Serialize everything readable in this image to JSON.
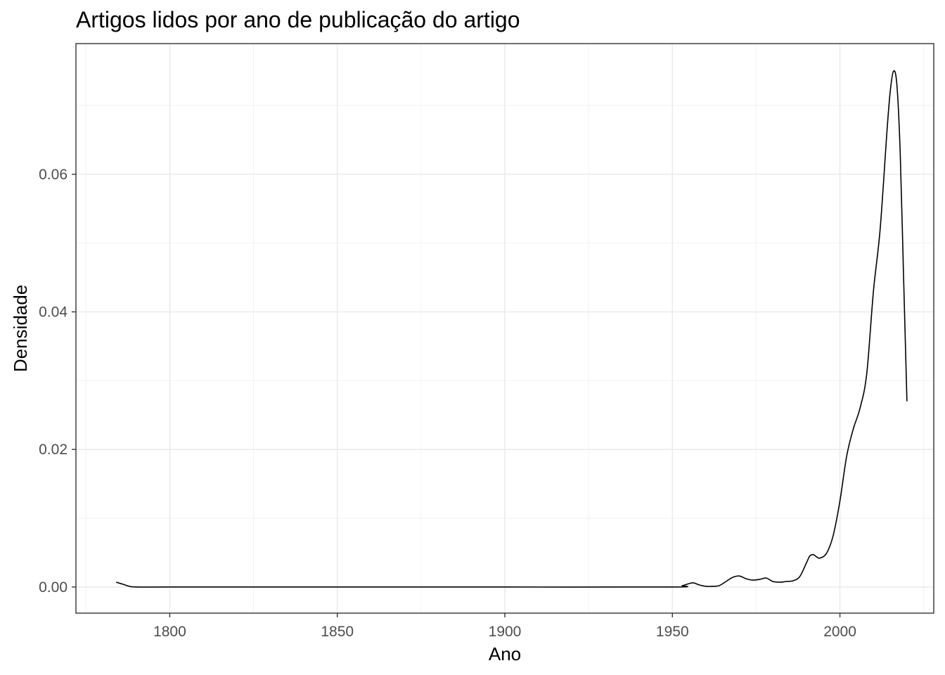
{
  "chart_data": {
    "type": "line",
    "title": "Artigos lidos por ano de publicação do artigo",
    "xlabel": "Ano",
    "ylabel": "Densidade",
    "xlim": [
      1772,
      2028
    ],
    "ylim": [
      -0.0038,
      0.079
    ],
    "x_ticks": [
      1800,
      1850,
      1900,
      1950,
      2000
    ],
    "x_tick_labels": [
      "1800",
      "1850",
      "1900",
      "1950",
      "2000"
    ],
    "x_minor_ticks": [
      1775,
      1825,
      1875,
      1925,
      1975,
      2025
    ],
    "y_ticks": [
      0,
      0.02,
      0.04,
      0.06
    ],
    "y_tick_labels": [
      "0.00",
      "0.02",
      "0.04",
      "0.06"
    ],
    "y_minor_ticks": [
      0.01,
      0.03,
      0.05,
      0.07
    ],
    "grid": true,
    "line_color": "#000000",
    "series": [
      {
        "x": [
          1784,
          1786,
          1788,
          1790,
          1800,
          1850,
          1900,
          1950,
          1953,
          1956,
          1958,
          1960,
          1962,
          1964,
          1966,
          1968,
          1970,
          1972,
          1974,
          1976,
          1978,
          1980,
          1982,
          1984,
          1986,
          1988,
          1990,
          1991,
          1992,
          1993,
          1994,
          1996,
          1998,
          2000,
          2002,
          2004,
          2006,
          2008,
          2010,
          2012,
          2014,
          2015,
          2016,
          2017,
          2018,
          2019,
          2020
        ],
        "y": [
          0.0007,
          0.0004,
          0.0001,
          0.0,
          0.0,
          0.0,
          0.0,
          0.0,
          0.0002,
          0.0006,
          0.0003,
          0.0001,
          0.0001,
          0.0002,
          0.0008,
          0.0014,
          0.0016,
          0.0012,
          0.001,
          0.0011,
          0.0013,
          0.0008,
          0.0007,
          0.0008,
          0.0009,
          0.0015,
          0.0035,
          0.0045,
          0.0047,
          0.0044,
          0.0042,
          0.0049,
          0.0075,
          0.0125,
          0.019,
          0.023,
          0.026,
          0.031,
          0.043,
          0.052,
          0.066,
          0.072,
          0.075,
          0.073,
          0.063,
          0.045,
          0.027
        ]
      }
    ]
  }
}
